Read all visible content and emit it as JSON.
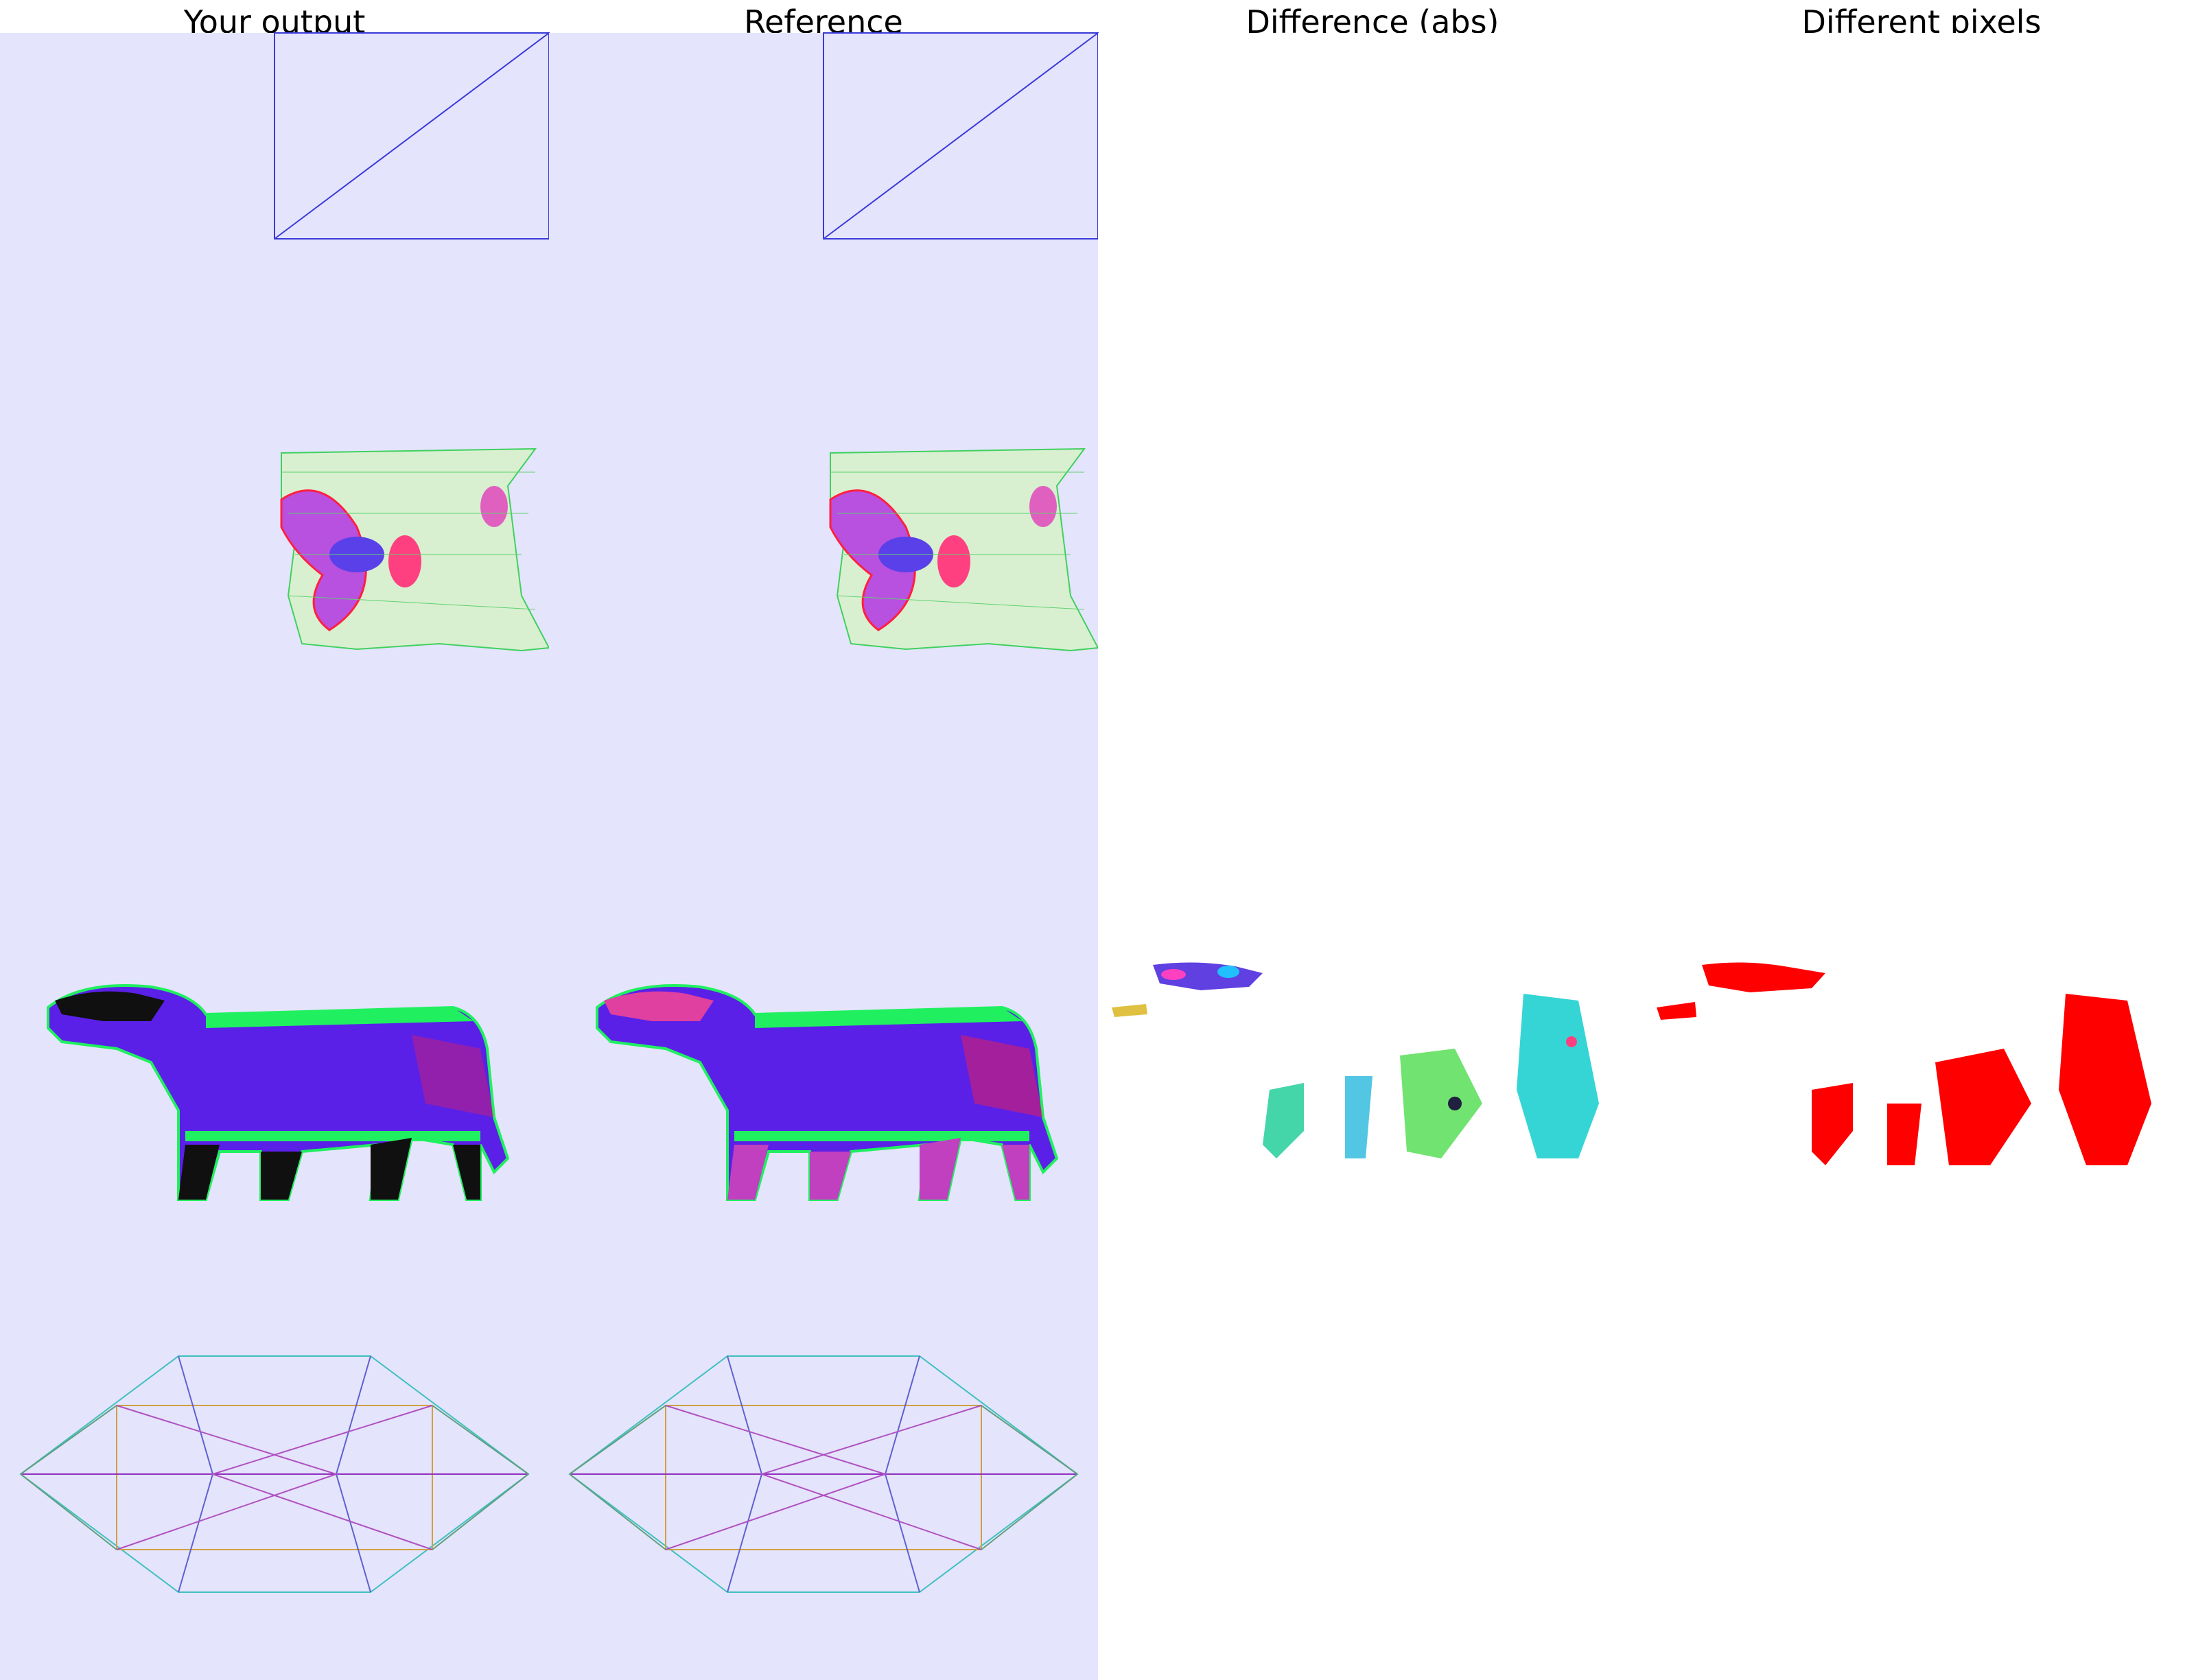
{
  "titles": {
    "output": "Your output",
    "reference": "Reference",
    "difference": "Difference (abs)",
    "different_pixels": "Different pixels"
  },
  "colors": {
    "panel_background": "#e4e4fc",
    "plain_background": "#ffffff",
    "wireframe_blue": "#3a3ad8",
    "diff_red": "#ff0000",
    "mesh_blue": "#5a20e8",
    "mesh_green": "#20f060",
    "mesh_red": "#ff2040"
  },
  "rows": [
    "quad",
    "uv-parameterization",
    "cow-mesh",
    "polyhedron"
  ]
}
